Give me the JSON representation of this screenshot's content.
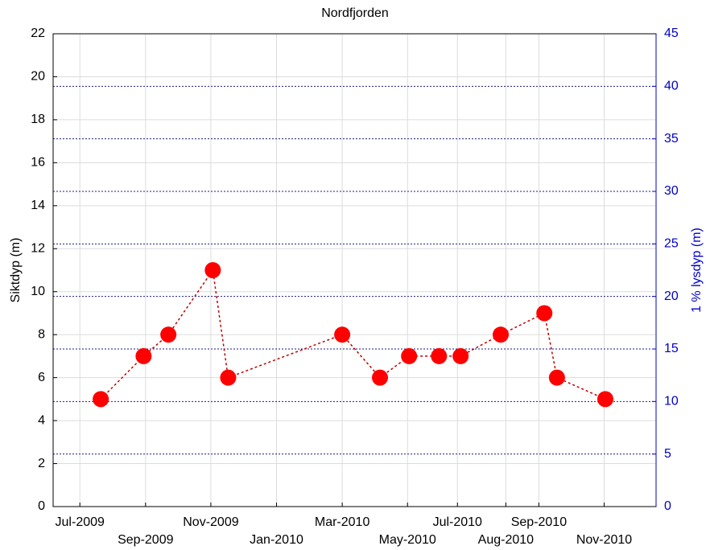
{
  "chart_data": {
    "type": "line",
    "title": "Nordfjorden",
    "y_label": "Siktdyp (m)",
    "y2_label": "1 % lysdyp (m)",
    "x": [
      2009.553,
      2009.662,
      2009.725,
      2009.838,
      2009.877,
      2010.167,
      2010.263,
      2010.337,
      2010.413,
      2010.468,
      2010.57,
      2010.681,
      2010.713,
      2010.836
    ],
    "series": [
      {
        "name": "Siktdyp",
        "color": "#ff0000",
        "line_color": "#c00000",
        "values": [
          5,
          7,
          8,
          11,
          6,
          8,
          6,
          7,
          7,
          7,
          8,
          9,
          6,
          5
        ]
      }
    ],
    "xlim": [
      2009.432,
      2010.965
    ],
    "xticks": [
      {
        "value": 2009.5,
        "label": "Jul-2009"
      },
      {
        "value": 2009.667,
        "label": "Sep-2009"
      },
      {
        "value": 2009.833,
        "label": "Nov-2009"
      },
      {
        "value": 2010.0,
        "label": "Jan-2010"
      },
      {
        "value": 2010.167,
        "label": "Mar-2010"
      },
      {
        "value": 2010.333,
        "label": "May-2010"
      },
      {
        "value": 2010.46,
        "label": "Jul-2010"
      },
      {
        "value": 2010.583,
        "label": "Aug-2010"
      },
      {
        "value": 2010.667,
        "label": "Sep-2010"
      },
      {
        "value": 2010.833,
        "label": "Nov-2010"
      }
    ],
    "ylim": [
      0,
      22
    ],
    "yticks": [
      0,
      2,
      4,
      6,
      8,
      10,
      12,
      14,
      16,
      18,
      20,
      22
    ],
    "y2lim": [
      0,
      45
    ],
    "y2ticks": [
      0,
      5,
      10,
      15,
      20,
      25,
      30,
      35,
      40,
      45
    ],
    "y2_color": "#0000cc",
    "grid": true
  }
}
